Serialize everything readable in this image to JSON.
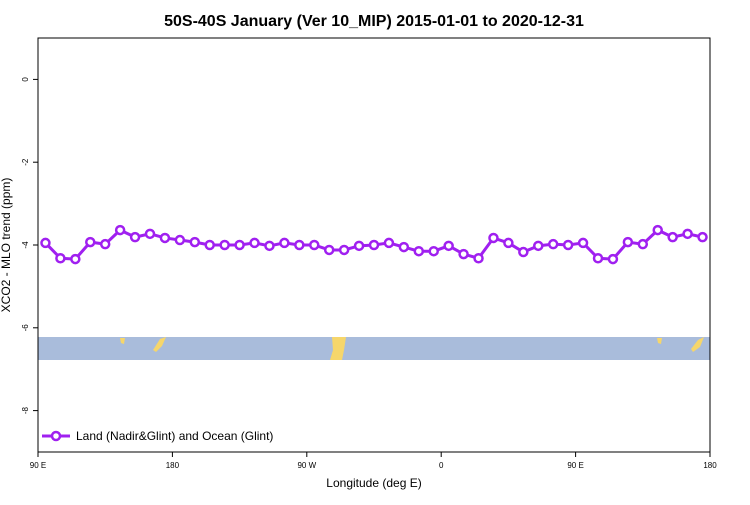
{
  "chart_data": {
    "type": "line",
    "title": "50S-40S January (Ver 10_MIP)   2015-01-01 to 2020-12-31",
    "x_label": "Longitude (deg E)",
    "y_label": "XCO2 - MLO trend (ppm)",
    "x": [
      95,
      105,
      115,
      125,
      135,
      145,
      155,
      165,
      175,
      185,
      195,
      205,
      215,
      225,
      235,
      245,
      255,
      265,
      275,
      285,
      295,
      305,
      315,
      325,
      335,
      345,
      355,
      365,
      375,
      385,
      395,
      405,
      415,
      425,
      435,
      445,
      455,
      465,
      475,
      485,
      495,
      505,
      515,
      525,
      535
    ],
    "series": [
      {
        "name": "Land (Nadir&Glint) and Ocean (Glint)",
        "color": "#a020f0",
        "values": [
          -3.95,
          -4.32,
          -4.34,
          -3.93,
          -3.98,
          -3.64,
          -3.81,
          -3.73,
          -3.83,
          -3.88,
          -3.93,
          -4.0,
          -4.0,
          -4.0,
          -3.95,
          -4.02,
          -3.95,
          -4.0,
          -4.0,
          -4.12,
          -4.12,
          -4.02,
          -4.0,
          -3.95,
          -4.05,
          -4.15,
          -4.15,
          -4.02,
          -4.22,
          -4.32,
          -3.83,
          -3.95,
          -4.17,
          -4.02,
          -3.98,
          -4.0,
          -3.95,
          -4.32,
          -4.34,
          -3.93,
          -3.98,
          -3.64,
          -3.81,
          -3.73,
          -3.81
        ]
      }
    ],
    "xlim": [
      90,
      540
    ],
    "xticks": [
      {
        "value": 90,
        "label": "90 E"
      },
      {
        "value": 180,
        "label": "180"
      },
      {
        "value": 270,
        "label": "90 W"
      },
      {
        "value": 360,
        "label": "0"
      },
      {
        "value": 450,
        "label": "90 E"
      },
      {
        "value": 540,
        "label": "180"
      }
    ],
    "ylim": [
      -9,
      1
    ],
    "yticks": [
      0,
      -2,
      -4,
      -6,
      -8
    ],
    "legend": "bottom-left"
  }
}
